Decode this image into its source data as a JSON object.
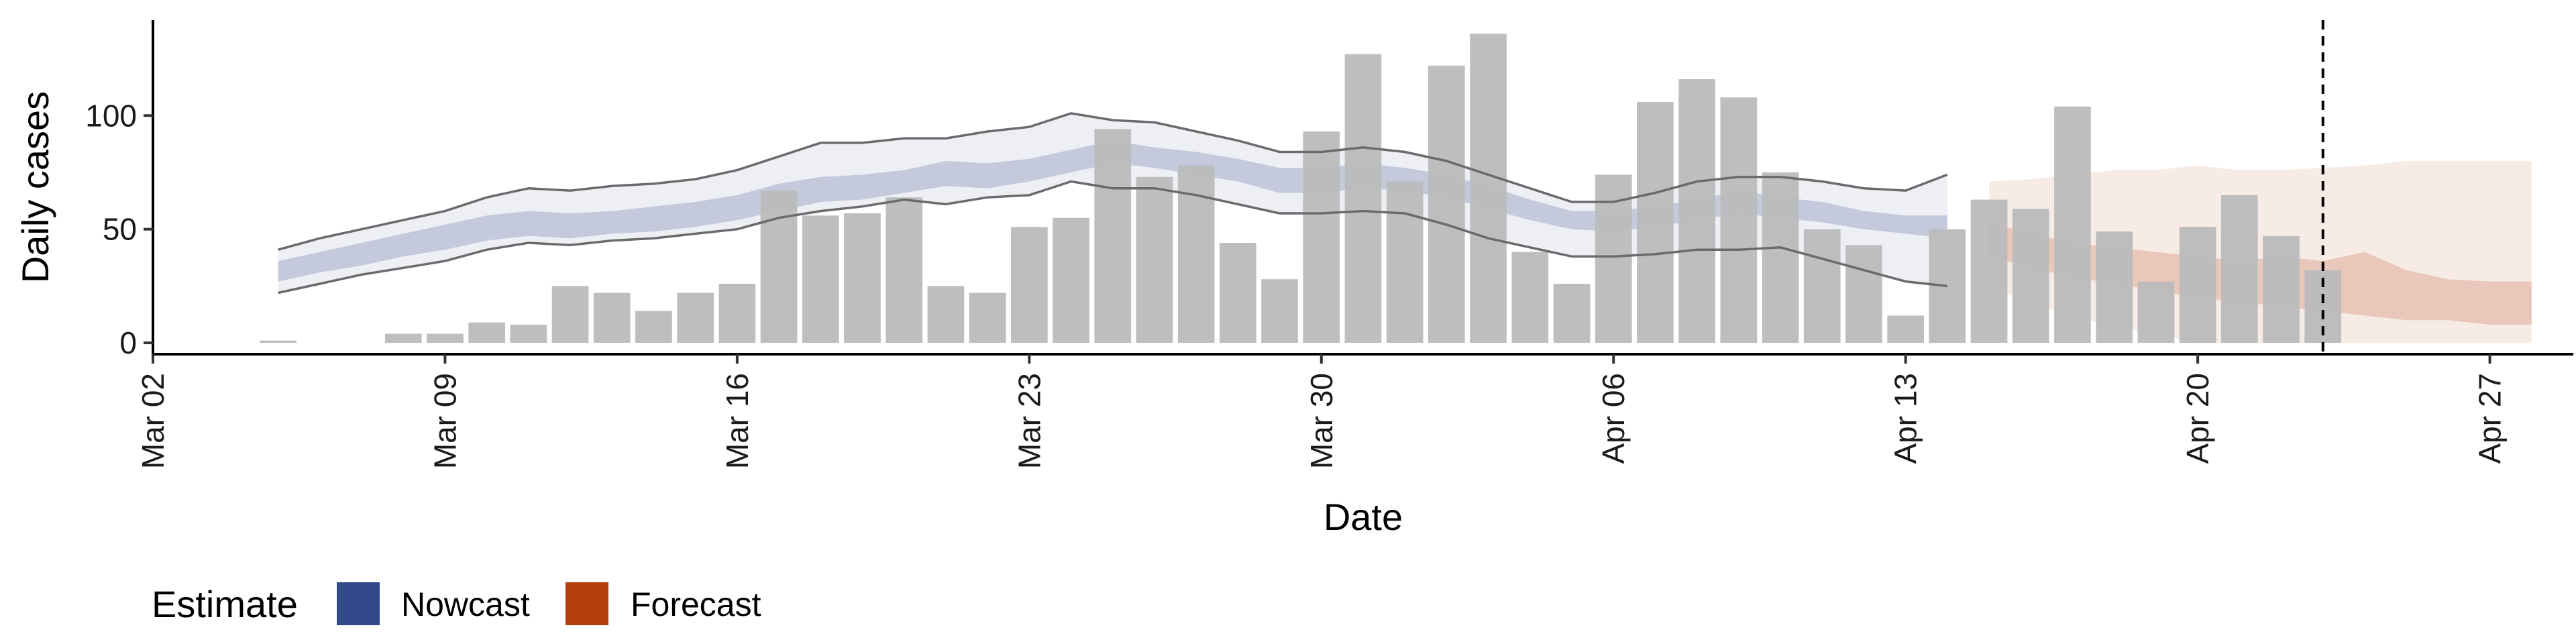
{
  "chart_data": {
    "type": "bar",
    "xlabel": "Date",
    "ylabel": "Daily cases",
    "x_range": [
      "2020-03-02",
      "2020-04-29"
    ],
    "ylim": [
      -5,
      142
    ],
    "y_ticks": [
      0,
      50,
      100
    ],
    "x_ticks": [
      {
        "date": "2020-03-02",
        "label": "Mar 02"
      },
      {
        "date": "2020-03-09",
        "label": "Mar 09"
      },
      {
        "date": "2020-03-16",
        "label": "Mar 16"
      },
      {
        "date": "2020-03-23",
        "label": "Mar 23"
      },
      {
        "date": "2020-03-30",
        "label": "Mar 30"
      },
      {
        "date": "2020-04-06",
        "label": "Apr 06"
      },
      {
        "date": "2020-04-13",
        "label": "Apr 13"
      },
      {
        "date": "2020-04-20",
        "label": "Apr 20"
      },
      {
        "date": "2020-04-27",
        "label": "Apr 27"
      }
    ],
    "grid": false,
    "legend_position": "bottom-left",
    "bar_color": "#bbbbbb",
    "reported_cases": {
      "dates": [
        "2020-03-05",
        "2020-03-06",
        "2020-03-07",
        "2020-03-08",
        "2020-03-09",
        "2020-03-10",
        "2020-03-11",
        "2020-03-12",
        "2020-03-13",
        "2020-03-14",
        "2020-03-15",
        "2020-03-16",
        "2020-03-17",
        "2020-03-18",
        "2020-03-19",
        "2020-03-20",
        "2020-03-21",
        "2020-03-22",
        "2020-03-23",
        "2020-03-24",
        "2020-03-25",
        "2020-03-26",
        "2020-03-27",
        "2020-03-28",
        "2020-03-29",
        "2020-03-30",
        "2020-03-31",
        "2020-04-01",
        "2020-04-02",
        "2020-04-03",
        "2020-04-04",
        "2020-04-05",
        "2020-04-06",
        "2020-04-07",
        "2020-04-08",
        "2020-04-09",
        "2020-04-10",
        "2020-04-11",
        "2020-04-12",
        "2020-04-13",
        "2020-04-14",
        "2020-04-15",
        "2020-04-16",
        "2020-04-17",
        "2020-04-18",
        "2020-04-19",
        "2020-04-20",
        "2020-04-21",
        "2020-04-22",
        "2020-04-23"
      ],
      "values": [
        1,
        0,
        0,
        4,
        4,
        9,
        8,
        25,
        22,
        14,
        22,
        26,
        67,
        56,
        57,
        64,
        25,
        22,
        51,
        55,
        94,
        73,
        78,
        44,
        28,
        93,
        127,
        71,
        122,
        136,
        40,
        26,
        74,
        106,
        116,
        108,
        75,
        50,
        43,
        12,
        50,
        63,
        59,
        104,
        49,
        27,
        51,
        65,
        47,
        32
      ]
    },
    "forecast_start": "2020-04-23",
    "legend": {
      "title": "Estimate",
      "items": [
        {
          "label": "Nowcast",
          "color": "#32498a"
        },
        {
          "label": "Forecast",
          "color": "#b53d0e"
        }
      ]
    },
    "series": [
      {
        "name": "Nowcast",
        "color": "#32498a",
        "dates": [
          "2020-03-05",
          "2020-03-06",
          "2020-03-07",
          "2020-03-08",
          "2020-03-09",
          "2020-03-10",
          "2020-03-11",
          "2020-03-12",
          "2020-03-13",
          "2020-03-14",
          "2020-03-15",
          "2020-03-16",
          "2020-03-17",
          "2020-03-18",
          "2020-03-19",
          "2020-03-20",
          "2020-03-21",
          "2020-03-22",
          "2020-03-23",
          "2020-03-24",
          "2020-03-25",
          "2020-03-26",
          "2020-03-27",
          "2020-03-28",
          "2020-03-29",
          "2020-03-30",
          "2020-03-31",
          "2020-04-01",
          "2020-04-02",
          "2020-04-03",
          "2020-04-04",
          "2020-04-05",
          "2020-04-06",
          "2020-04-07",
          "2020-04-08",
          "2020-04-09",
          "2020-04-10",
          "2020-04-11",
          "2020-04-12",
          "2020-04-13",
          "2020-04-14"
        ],
        "outer_upper": [
          41,
          46,
          50,
          54,
          58,
          64,
          68,
          67,
          69,
          70,
          72,
          76,
          82,
          88,
          88,
          90,
          90,
          93,
          95,
          101,
          98,
          97,
          93,
          89,
          84,
          84,
          86,
          84,
          80,
          74,
          68,
          62,
          62,
          66,
          71,
          73,
          73,
          71,
          68,
          67,
          74
        ],
        "inner_upper": [
          36,
          40,
          44,
          48,
          52,
          56,
          58,
          57,
          58,
          60,
          62,
          65,
          70,
          73,
          74,
          76,
          80,
          79,
          81,
          85,
          89,
          86,
          84,
          81,
          77,
          77,
          79,
          77,
          74,
          69,
          63,
          58,
          58,
          60,
          63,
          67,
          64,
          62,
          58,
          56,
          56
        ],
        "inner_lower": [
          27,
          31,
          34,
          38,
          41,
          45,
          47,
          46,
          48,
          49,
          51,
          54,
          58,
          62,
          63,
          66,
          69,
          68,
          71,
          75,
          79,
          77,
          74,
          71,
          66,
          66,
          68,
          67,
          64,
          59,
          54,
          50,
          49,
          51,
          54,
          57,
          55,
          53,
          50,
          48,
          46
        ],
        "outer_lower": [
          22,
          26,
          30,
          33,
          36,
          41,
          44,
          43,
          45,
          46,
          48,
          50,
          55,
          58,
          60,
          63,
          61,
          64,
          65,
          71,
          68,
          68,
          65,
          61,
          57,
          57,
          58,
          57,
          52,
          46,
          42,
          38,
          38,
          39,
          41,
          41,
          42,
          37,
          32,
          27,
          25
        ]
      },
      {
        "name": "Forecast",
        "color": "#b53d0e",
        "dates": [
          "2020-04-15",
          "2020-04-16",
          "2020-04-17",
          "2020-04-18",
          "2020-04-19",
          "2020-04-20",
          "2020-04-21",
          "2020-04-22",
          "2020-04-23",
          "2020-04-24",
          "2020-04-25",
          "2020-04-26",
          "2020-04-27",
          "2020-04-28"
        ],
        "outer_upper": [
          71,
          72,
          74,
          76,
          76,
          78,
          76,
          76,
          77,
          78,
          80,
          80,
          80,
          80
        ],
        "inner_upper": [
          53,
          48,
          44,
          42,
          40,
          38,
          36,
          38,
          36,
          40,
          32,
          28,
          27,
          27
        ],
        "inner_lower": [
          38,
          33,
          29,
          26,
          23,
          20,
          18,
          16,
          14,
          12,
          10,
          10,
          8,
          8
        ],
        "outer_lower": [
          24,
          18,
          12,
          7,
          4,
          0,
          0,
          0,
          0,
          0,
          0,
          0,
          0,
          0
        ]
      }
    ]
  }
}
